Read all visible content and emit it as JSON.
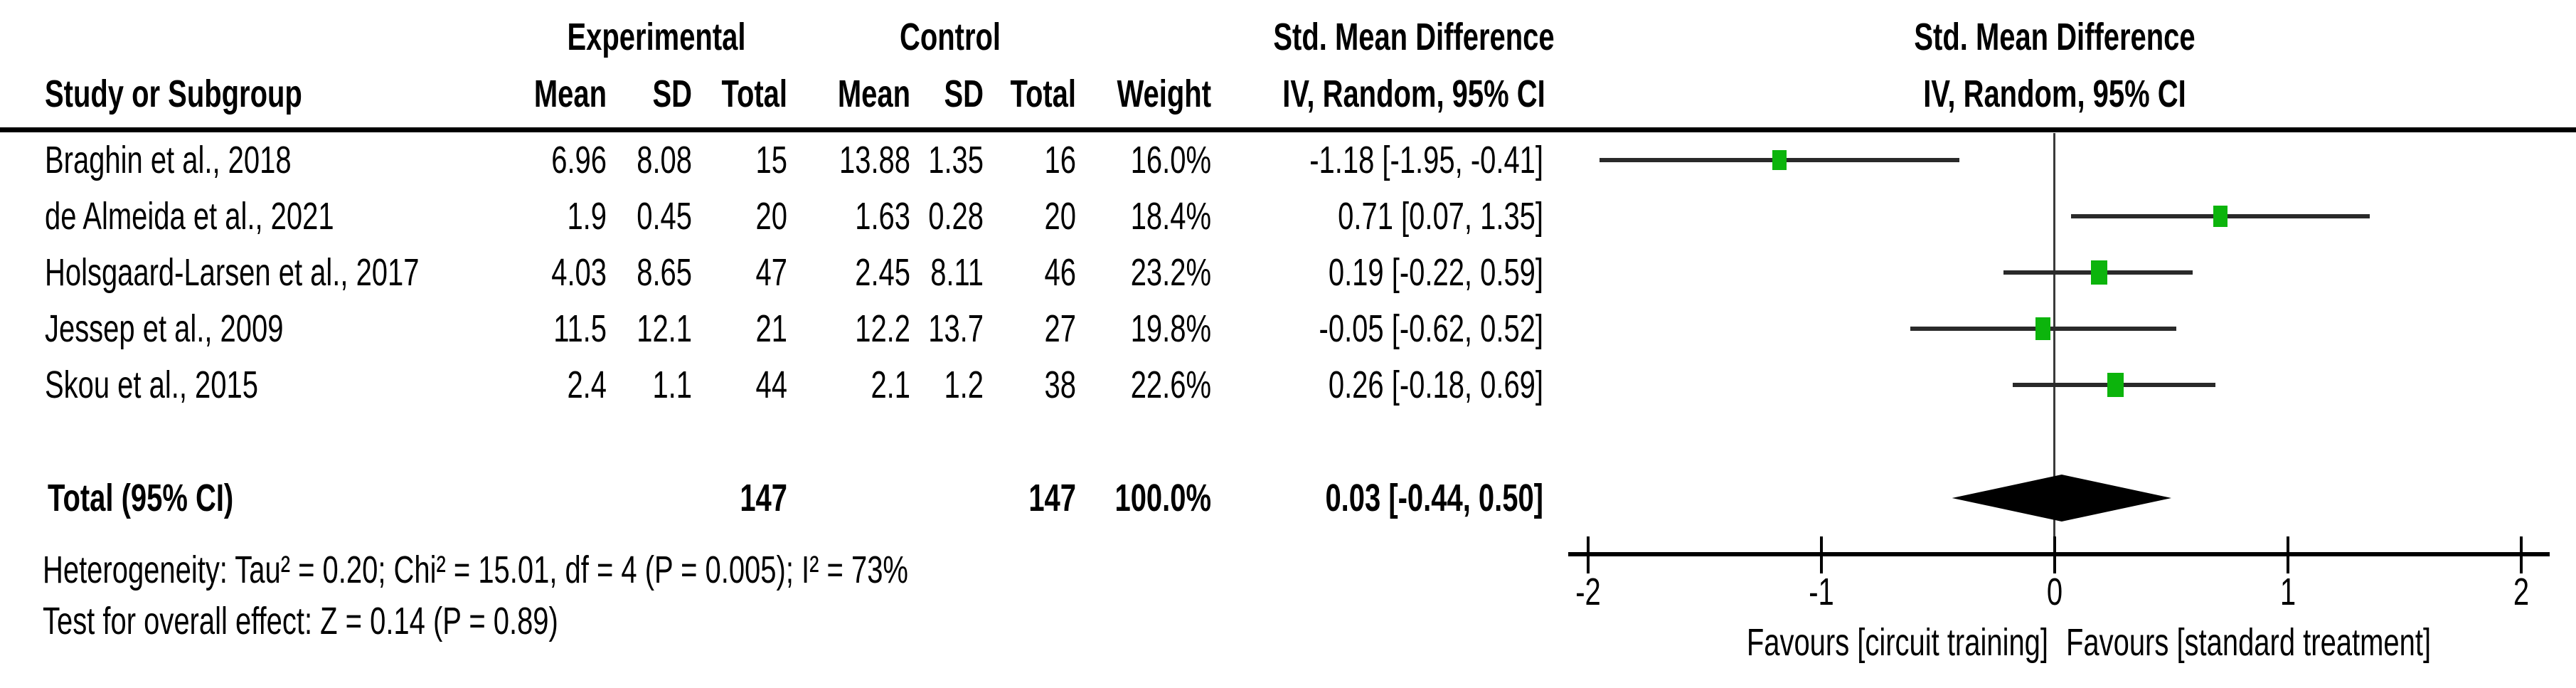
{
  "header": {
    "experimental": "Experimental",
    "control": "Control",
    "smd": "Std. Mean Difference",
    "iv_random": "IV, Random, 95% CI"
  },
  "columns": {
    "study": "Study or Subgroup",
    "mean": "Mean",
    "sd": "SD",
    "total": "Total",
    "weight": "Weight"
  },
  "chart_data": {
    "type": "forest",
    "x_axis": {
      "min": -2,
      "max": 2,
      "ticks": [
        "-2",
        "-1",
        "0",
        "1",
        "2"
      ],
      "tick_values": [
        -2,
        -1,
        0,
        1,
        2
      ]
    },
    "favours_left": "Favours [circuit training]",
    "favours_right": "Favours [standard treatment]",
    "marker_color": "#0cb40c",
    "studies": [
      {
        "name": "Braghin et al., 2018",
        "exp_mean": "6.96",
        "exp_sd": "8.08",
        "exp_total": "15",
        "ctl_mean": "13.88",
        "ctl_sd": "1.35",
        "ctl_total": "16",
        "weight": "16.0%",
        "weight_value": 16.0,
        "est": -1.18,
        "lo": -1.95,
        "hi": -0.41,
        "ci_text": "-1.18 [-1.95, -0.41]"
      },
      {
        "name": "de Almeida et al., 2021",
        "exp_mean": "1.9",
        "exp_sd": "0.45",
        "exp_total": "20",
        "ctl_mean": "1.63",
        "ctl_sd": "0.28",
        "ctl_total": "20",
        "weight": "18.4%",
        "weight_value": 18.4,
        "est": 0.71,
        "lo": 0.07,
        "hi": 1.35,
        "ci_text": "0.71 [0.07, 1.35]"
      },
      {
        "name": "Holsgaard-Larsen et al., 2017",
        "exp_mean": "4.03",
        "exp_sd": "8.65",
        "exp_total": "47",
        "ctl_mean": "2.45",
        "ctl_sd": "8.11",
        "ctl_total": "46",
        "weight": "23.2%",
        "weight_value": 23.2,
        "est": 0.19,
        "lo": -0.22,
        "hi": 0.59,
        "ci_text": "0.19 [-0.22, 0.59]"
      },
      {
        "name": "Jessep et al., 2009",
        "exp_mean": "11.5",
        "exp_sd": "12.1",
        "exp_total": "21",
        "ctl_mean": "12.2",
        "ctl_sd": "13.7",
        "ctl_total": "27",
        "weight": "19.8%",
        "weight_value": 19.8,
        "est": -0.05,
        "lo": -0.62,
        "hi": 0.52,
        "ci_text": "-0.05 [-0.62, 0.52]"
      },
      {
        "name": "Skou et al., 2015",
        "exp_mean": "2.4",
        "exp_sd": "1.1",
        "exp_total": "44",
        "ctl_mean": "2.1",
        "ctl_sd": "1.2",
        "ctl_total": "38",
        "weight": "22.6%",
        "weight_value": 22.6,
        "est": 0.26,
        "lo": -0.18,
        "hi": 0.69,
        "ci_text": "0.26 [-0.18, 0.69]"
      }
    ],
    "total": {
      "label": "Total (95% CI)",
      "exp_total": "147",
      "ctl_total": "147",
      "weight": "100.0%",
      "est": 0.03,
      "lo": -0.44,
      "hi": 0.5,
      "ci_text": "0.03 [-0.44, 0.50]"
    },
    "heterogeneity": "Heterogeneity: Tau² = 0.20; Chi² = 15.01, df = 4 (P = 0.005); I² = 73%",
    "overall_effect": "Test for overall effect: Z = 0.14 (P = 0.89)"
  }
}
